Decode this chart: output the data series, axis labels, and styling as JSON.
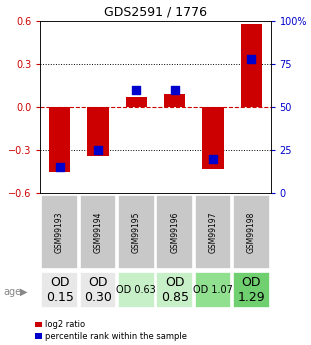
{
  "title": "GDS2591 / 1776",
  "samples": [
    "GSM99193",
    "GSM99194",
    "GSM99195",
    "GSM99196",
    "GSM99197",
    "GSM99198"
  ],
  "log2_ratio": [
    -0.45,
    -0.34,
    0.07,
    0.09,
    -0.43,
    0.58
  ],
  "percentile_rank": [
    15,
    25,
    60,
    60,
    20,
    78
  ],
  "age_labels": [
    "OD\n0.15",
    "OD\n0.30",
    "OD 0.63",
    "OD\n0.85",
    "OD 1.07",
    "OD\n1.29"
  ],
  "age_bg_colors": [
    "#e8e8e8",
    "#e8e8e8",
    "#c8f0c8",
    "#c8f0c8",
    "#90e090",
    "#70d070"
  ],
  "age_fontsize": [
    9,
    9,
    7,
    9,
    7,
    9
  ],
  "ylim": [
    -0.6,
    0.6
  ],
  "yticks_left": [
    -0.6,
    -0.3,
    0.0,
    0.3,
    0.6
  ],
  "yticks_right": [
    0,
    25,
    50,
    75,
    100
  ],
  "bar_color": "#cc0000",
  "dot_color": "#0000cc",
  "bar_width": 0.55,
  "dot_size": 30,
  "grid_color": "black",
  "zero_line_color": "#cc0000",
  "background_color": "#ffffff",
  "sample_bg_color": "#c8c8c8",
  "legend_items": [
    "log2 ratio",
    "percentile rank within the sample"
  ]
}
